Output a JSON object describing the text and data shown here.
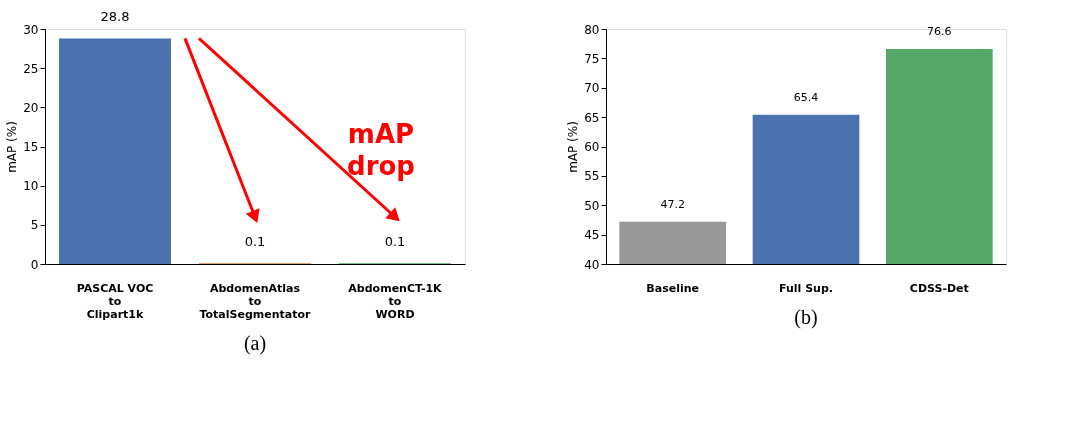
{
  "chart_data": [
    {
      "type": "bar",
      "categories": [
        "PASCAL VOC\nto\nClipart1k",
        "AbdomenAtlas\nto\nTotalSegmentator",
        "AbdomenCT-1K\nto\nWORD"
      ],
      "values": [
        28.8,
        0.1,
        0.1
      ],
      "colors": [
        "#4c72b0",
        "#dd8452",
        "#55a868"
      ],
      "ylabel": "mAP (%)",
      "ylim": [
        0,
        30
      ],
      "yticks": [
        0,
        5,
        10,
        15,
        20,
        25,
        30
      ],
      "data_labels": true,
      "annotations": [
        "mAP drop",
        "(a)"
      ]
    },
    {
      "type": "bar",
      "categories": [
        "Baseline",
        "Full Sup.",
        "CDSS-Det"
      ],
      "values": [
        47.2,
        65.4,
        76.6
      ],
      "colors": [
        "#999999",
        "#4c72b0",
        "#55a868"
      ],
      "ylabel": "mAP (%)",
      "ylim": [
        40,
        80
      ],
      "yticks": [
        40,
        45,
        50,
        55,
        60,
        65,
        70,
        75,
        80
      ],
      "data_labels": true,
      "annotations": [
        "(b)"
      ]
    }
  ]
}
